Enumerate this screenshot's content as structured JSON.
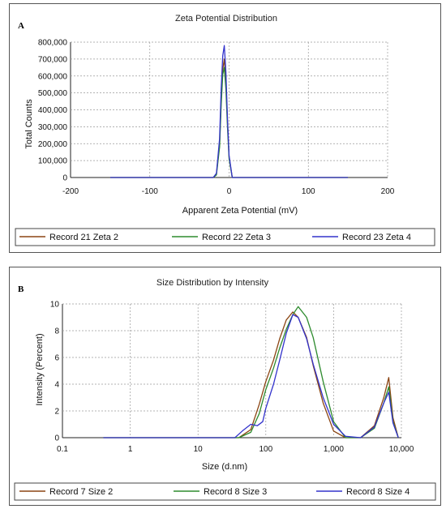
{
  "panels": [
    {
      "letter": "A",
      "chart_data": {
        "type": "line",
        "title": "Zeta Potential Distribution",
        "xlabel": "Apparent Zeta Potential (mV)",
        "ylabel": "Total Counts",
        "xlim": [
          -200,
          200
        ],
        "ylim": [
          0,
          800000
        ],
        "xticks": [
          -200,
          -100,
          0,
          100,
          200
        ],
        "xtick_labels": [
          "-200",
          "-100",
          "0",
          "100",
          "200"
        ],
        "yticks": [
          0,
          100000,
          200000,
          300000,
          400000,
          500000,
          600000,
          700000,
          800000
        ],
        "ytick_labels": [
          "0",
          "100,000",
          "200,000",
          "300,000",
          "400,000",
          "500,000",
          "600,000",
          "700,000",
          "800,000"
        ],
        "grid": true,
        "legend_position": "bottom",
        "series": [
          {
            "name": "Record 21 Zeta 2",
            "color": "#8B4513",
            "x": [
              -150,
              -20,
              -16,
              -12,
              -10,
              -8,
              -6,
              -4,
              -2,
              0,
              4,
              150
            ],
            "y": [
              0,
              0,
              20000,
              200000,
              450000,
              640000,
              700000,
              560000,
              330000,
              120000,
              0,
              0
            ]
          },
          {
            "name": "Record 22 Zeta 3",
            "color": "#2E8B2E",
            "x": [
              -150,
              -20,
              -16,
              -12,
              -10,
              -8,
              -6,
              -4,
              -2,
              0,
              4,
              150
            ],
            "y": [
              0,
              0,
              15000,
              180000,
              420000,
              610000,
              650000,
              520000,
              300000,
              110000,
              0,
              0
            ]
          },
          {
            "name": "Record 23 Zeta 4",
            "color": "#3333CC",
            "x": [
              -150,
              -20,
              -16,
              -12,
              -10,
              -8,
              -6,
              -4,
              -2,
              0,
              4,
              150
            ],
            "y": [
              0,
              0,
              25000,
              230000,
              520000,
              720000,
              780000,
              620000,
              350000,
              130000,
              0,
              0
            ]
          }
        ]
      }
    },
    {
      "letter": "B",
      "chart_data": {
        "type": "line",
        "title": "Size Distribution by Intensity",
        "xlabel": "Size (d.nm)",
        "ylabel": "Intensity (Percent)",
        "xscale": "log",
        "xlim": [
          0.1,
          10000
        ],
        "ylim": [
          0,
          10
        ],
        "xticks": [
          0.1,
          1,
          10,
          100,
          1000,
          10000
        ],
        "xtick_labels": [
          "0.1",
          "1",
          "10",
          "100",
          "1,000",
          "10,000"
        ],
        "yticks": [
          0,
          2,
          4,
          6,
          8,
          10
        ],
        "ytick_labels": [
          "0",
          "2",
          "4",
          "6",
          "8",
          "10"
        ],
        "grid": true,
        "legend_position": "bottom",
        "series": [
          {
            "name": "Record 7 Size 2",
            "color": "#8B4513",
            "x": [
              0.4,
              40,
              60,
              80,
              100,
              130,
              160,
              200,
              250,
              300,
              400,
              500,
              700,
              1000,
              1500,
              2500,
              4000,
              5500,
              6500,
              7500,
              9000
            ],
            "y": [
              0,
              0,
              0.6,
              2.5,
              4.2,
              5.8,
              7.4,
              8.8,
              9.4,
              9.0,
              7.5,
              5.4,
              2.6,
              0.5,
              0,
              0,
              0.9,
              3.0,
              4.5,
              1.5,
              0
            ]
          },
          {
            "name": "Record 8 Size 3",
            "color": "#2E8B2E",
            "x": [
              0.4,
              40,
              60,
              80,
              100,
              130,
              160,
              200,
              250,
              300,
              400,
              500,
              700,
              1000,
              1500,
              2500,
              4000,
              5500,
              6500,
              7500,
              9000
            ],
            "y": [
              0,
              0,
              0.4,
              1.8,
              3.6,
              5.2,
              6.7,
              8.1,
              9.2,
              9.8,
              9.0,
              7.5,
              4.2,
              1.2,
              0,
              0,
              0.7,
              2.6,
              3.8,
              1.2,
              0
            ]
          },
          {
            "name": "Record 8 Size 4",
            "color": "#3333CC",
            "x": [
              0.4,
              35,
              45,
              60,
              75,
              90,
              100,
              130,
              160,
              200,
              250,
              300,
              400,
              500,
              700,
              1000,
              1500,
              2500,
              4000,
              5500,
              6500,
              7500,
              9000
            ],
            "y": [
              0,
              0,
              0.5,
              1.0,
              0.9,
              1.2,
              2.2,
              4.0,
              5.8,
              7.8,
              9.2,
              9.0,
              7.4,
              5.5,
              3.0,
              1.0,
              0.1,
              0,
              0.8,
              2.6,
              3.4,
              1.1,
              0
            ]
          }
        ]
      }
    }
  ]
}
